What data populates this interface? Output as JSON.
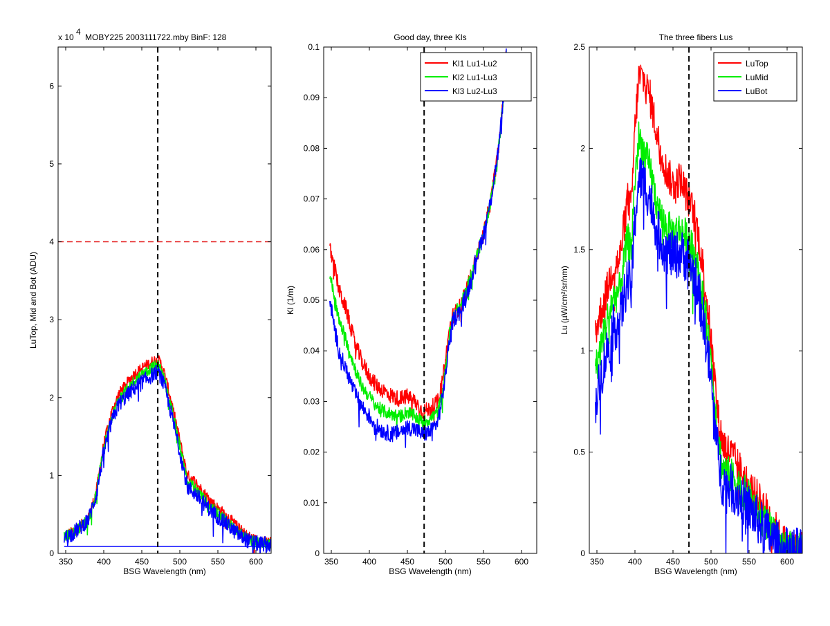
{
  "chart_data": [
    {
      "type": "line",
      "title": "MOBY225  2003111722.mby BinF: 128",
      "exponent_label": "x 10",
      "exponent_power": "4",
      "xlabel": "BSG Wavelength (nm)",
      "ylabel": "LuTop, Mid and Bot (ADU)",
      "xlim": [
        340,
        620
      ],
      "ylim": [
        0,
        6.5
      ],
      "xticks": [
        350,
        400,
        450,
        500,
        550,
        600
      ],
      "yticks": [
        0,
        1,
        2,
        3,
        4,
        5,
        6
      ],
      "grid": false,
      "legend": "none",
      "vline_x": 471,
      "hline_y": 4,
      "hline_color": "#e41a1c",
      "vline_color": "#000000",
      "series": [
        {
          "color": "#ff0000",
          "noise": 0.07,
          "x": [
            348,
            360,
            370,
            380,
            390,
            395,
            400,
            410,
            420,
            430,
            440,
            450,
            460,
            465,
            470,
            475,
            480,
            490,
            500,
            510,
            515,
            520,
            530,
            540,
            550,
            560,
            570,
            580,
            590,
            600,
            610,
            620
          ],
          "y": [
            0.22,
            0.28,
            0.36,
            0.46,
            0.78,
            1.1,
            1.4,
            1.8,
            2.05,
            2.18,
            2.3,
            2.38,
            2.44,
            2.47,
            2.5,
            2.44,
            2.3,
            1.9,
            1.45,
            1.0,
            0.97,
            0.92,
            0.8,
            0.68,
            0.58,
            0.5,
            0.4,
            0.3,
            0.22,
            0.17,
            0.15,
            0.14
          ]
        },
        {
          "color": "#00ee00",
          "noise": 0.07,
          "x": [
            348,
            360,
            370,
            380,
            390,
            395,
            400,
            410,
            420,
            430,
            440,
            450,
            460,
            465,
            470,
            475,
            480,
            490,
            500,
            510,
            515,
            520,
            530,
            540,
            550,
            560,
            570,
            580,
            590,
            600,
            610,
            620
          ],
          "y": [
            0.21,
            0.27,
            0.35,
            0.45,
            0.76,
            1.06,
            1.35,
            1.74,
            1.98,
            2.1,
            2.22,
            2.3,
            2.36,
            2.39,
            2.42,
            2.36,
            2.22,
            1.82,
            1.38,
            0.92,
            0.88,
            0.84,
            0.72,
            0.61,
            0.52,
            0.44,
            0.34,
            0.25,
            0.18,
            0.14,
            0.13,
            0.12
          ]
        },
        {
          "color": "#0000ff",
          "noise": 0.1,
          "x": [
            348,
            360,
            370,
            380,
            390,
            395,
            400,
            410,
            420,
            430,
            440,
            450,
            460,
            465,
            470,
            475,
            480,
            490,
            500,
            510,
            515,
            520,
            530,
            540,
            550,
            560,
            570,
            580,
            590,
            600,
            610,
            620
          ],
          "y": [
            0.2,
            0.26,
            0.34,
            0.44,
            0.74,
            1.02,
            1.3,
            1.68,
            1.92,
            2.02,
            2.12,
            2.2,
            2.26,
            2.3,
            2.33,
            2.27,
            2.13,
            1.74,
            1.3,
            0.85,
            0.81,
            0.77,
            0.66,
            0.56,
            0.47,
            0.39,
            0.3,
            0.22,
            0.16,
            0.13,
            0.12,
            0.11
          ]
        },
        {
          "color": "#0000ff",
          "noise": 0,
          "x": [
            348,
            620
          ],
          "y": [
            0.09,
            0.09
          ]
        }
      ]
    },
    {
      "type": "line",
      "title": "Good day, three Kls",
      "xlabel": "BSG Wavelength (nm)",
      "ylabel": "Kl (1/m)",
      "xlim": [
        340,
        620
      ],
      "ylim": [
        0,
        0.1
      ],
      "xticks": [
        350,
        400,
        450,
        500,
        550,
        600
      ],
      "yticks": [
        0,
        0.01,
        0.02,
        0.03,
        0.04,
        0.05,
        0.06,
        0.07,
        0.08,
        0.09,
        0.1
      ],
      "grid": false,
      "legend": "top-right",
      "vline_x": 472,
      "vline_color": "#000000",
      "series": [
        {
          "name": "Kl1 Lu1-Lu2",
          "color": "#ff0000",
          "noise": 0.0016,
          "x": [
            348,
            355,
            360,
            370,
            380,
            390,
            400,
            410,
            420,
            430,
            440,
            450,
            460,
            470,
            480,
            490,
            495,
            500,
            505,
            510,
            520,
            530,
            540,
            550,
            560,
            570,
            575,
            580
          ],
          "y": [
            0.06,
            0.056,
            0.052,
            0.048,
            0.042,
            0.038,
            0.035,
            0.033,
            0.032,
            0.031,
            0.0305,
            0.031,
            0.03,
            0.028,
            0.0285,
            0.03,
            0.033,
            0.038,
            0.044,
            0.047,
            0.049,
            0.053,
            0.058,
            0.063,
            0.07,
            0.08,
            0.088,
            0.1
          ]
        },
        {
          "name": "Kl2 Lu1-Lu3",
          "color": "#00ee00",
          "noise": 0.0013,
          "x": [
            348,
            355,
            360,
            370,
            380,
            390,
            400,
            410,
            420,
            430,
            440,
            450,
            460,
            470,
            480,
            490,
            495,
            500,
            505,
            510,
            520,
            530,
            540,
            550,
            560,
            570,
            575,
            580
          ],
          "y": [
            0.055,
            0.05,
            0.046,
            0.042,
            0.037,
            0.033,
            0.031,
            0.029,
            0.028,
            0.0275,
            0.027,
            0.028,
            0.027,
            0.026,
            0.0265,
            0.028,
            0.031,
            0.036,
            0.043,
            0.047,
            0.049,
            0.053,
            0.058,
            0.063,
            0.07,
            0.08,
            0.088,
            0.1
          ]
        },
        {
          "name": "Kl3 Lu2-Lu3",
          "color": "#0000ff",
          "noise": 0.0016,
          "x": [
            348,
            355,
            360,
            370,
            380,
            390,
            400,
            410,
            420,
            430,
            440,
            450,
            460,
            470,
            480,
            490,
            495,
            500,
            505,
            510,
            520,
            530,
            540,
            550,
            560,
            570,
            575,
            580
          ],
          "y": [
            0.05,
            0.044,
            0.04,
            0.036,
            0.032,
            0.029,
            0.027,
            0.025,
            0.024,
            0.0235,
            0.024,
            0.025,
            0.0245,
            0.0235,
            0.024,
            0.026,
            0.03,
            0.035,
            0.042,
            0.046,
            0.048,
            0.052,
            0.058,
            0.063,
            0.07,
            0.08,
            0.088,
            0.1
          ]
        }
      ]
    },
    {
      "type": "line",
      "title": "The three fibers Lus",
      "xlabel": "BSG Wavelength (nm)",
      "ylabel": "Lu (µW/cm²/sr/nm)",
      "xlim": [
        340,
        620
      ],
      "ylim": [
        0,
        2.5
      ],
      "xticks": [
        350,
        400,
        450,
        500,
        550,
        600
      ],
      "yticks": [
        0,
        0.5,
        1,
        1.5,
        2,
        2.5
      ],
      "grid": false,
      "legend": "top-right",
      "vline_x": 471,
      "vline_color": "#000000",
      "series": [
        {
          "name": "LuTop",
          "color": "#ff0000",
          "noise": 0.09,
          "x": [
            348,
            360,
            370,
            380,
            390,
            395,
            400,
            405,
            410,
            420,
            430,
            440,
            450,
            460,
            470,
            480,
            490,
            500,
            510,
            515,
            520,
            530,
            540,
            550,
            560,
            570,
            580,
            590,
            600,
            610,
            620
          ],
          "y": [
            1.1,
            1.25,
            1.4,
            1.45,
            1.75,
            1.7,
            2.1,
            2.35,
            2.35,
            2.25,
            2.05,
            1.9,
            1.82,
            1.85,
            1.75,
            1.65,
            1.4,
            1.05,
            0.65,
            0.55,
            0.52,
            0.47,
            0.4,
            0.33,
            0.28,
            0.23,
            0.16,
            0.08,
            0.04,
            0.03,
            0.03
          ]
        },
        {
          "name": "LuMid",
          "color": "#00ee00",
          "noise": 0.09,
          "x": [
            348,
            360,
            370,
            380,
            390,
            395,
            400,
            405,
            410,
            420,
            430,
            440,
            450,
            460,
            470,
            480,
            490,
            500,
            510,
            515,
            520,
            530,
            540,
            550,
            560,
            570,
            580,
            590,
            600,
            610,
            620
          ],
          "y": [
            0.9,
            1.1,
            1.25,
            1.3,
            1.55,
            1.5,
            1.85,
            2.05,
            2.0,
            1.9,
            1.7,
            1.62,
            1.58,
            1.6,
            1.55,
            1.45,
            1.25,
            0.95,
            0.55,
            0.42,
            0.4,
            0.37,
            0.32,
            0.27,
            0.21,
            0.16,
            0.1,
            0.05,
            0.02,
            0.02,
            0.02
          ]
        },
        {
          "name": "LuBot",
          "color": "#0000ff",
          "noise": 0.12,
          "x": [
            348,
            360,
            370,
            380,
            390,
            395,
            400,
            405,
            410,
            420,
            430,
            440,
            450,
            460,
            470,
            480,
            490,
            500,
            510,
            515,
            520,
            530,
            540,
            550,
            560,
            570,
            580,
            590,
            600,
            610,
            620
          ],
          "y": [
            0.75,
            0.95,
            1.1,
            1.15,
            1.35,
            1.3,
            1.65,
            1.85,
            1.85,
            1.75,
            1.58,
            1.5,
            1.47,
            1.48,
            1.45,
            1.35,
            1.15,
            0.85,
            0.45,
            0.35,
            0.34,
            0.31,
            0.27,
            0.22,
            0.17,
            0.12,
            0.07,
            0.03,
            0.01,
            0.01,
            0.01
          ]
        }
      ]
    }
  ]
}
